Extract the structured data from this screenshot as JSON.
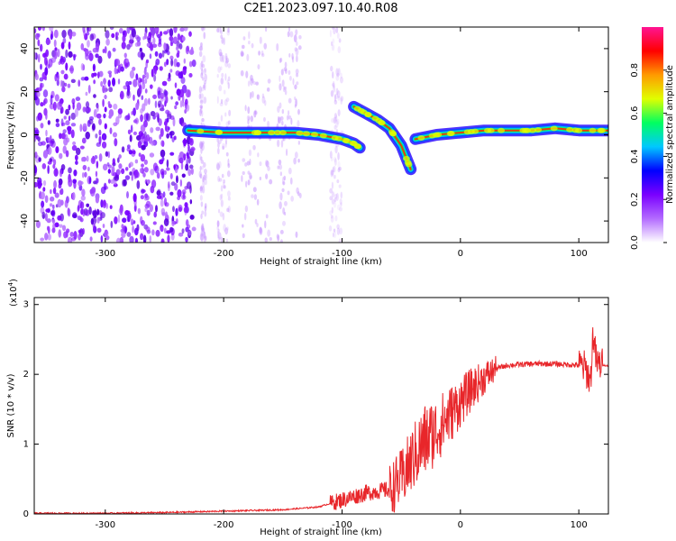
{
  "title": "C2E1.2023.097.10.40.R08",
  "chart_data": [
    {
      "type": "heatmap",
      "xlabel": "Height of straight line (km)",
      "ylabel": "Frequency (Hz)",
      "xlim": [
        -360,
        125
      ],
      "ylim": [
        -50,
        50
      ],
      "x_ticks": [
        -300,
        -200,
        -100,
        0,
        100
      ],
      "y_ticks": [
        -40,
        -20,
        0,
        20,
        40
      ],
      "colorbar": {
        "label": "Normalized spectral amplitude",
        "range": [
          0,
          1
        ],
        "ticks": [
          "0.0",
          "0.2",
          "0.4",
          "0.6",
          "0.8"
        ],
        "colors": [
          "#ffffff",
          "#b36bff",
          "#7a00ff",
          "#0000ff",
          "#00c8ff",
          "#00ff60",
          "#e0ff00",
          "#ff9a00",
          "#ff0000",
          "#ff1493"
        ]
      },
      "ridge": {
        "description_free": true,
        "segments": [
          {
            "x": [
              -230,
              -200,
              -170,
              -140,
              -120,
              -100,
              -90,
              -85
            ],
            "y": [
              2,
              1,
              1,
              1,
              0,
              -2,
              -4,
              -6
            ]
          },
          {
            "x": [
              -90,
              -80,
              -70,
              -60,
              -50,
              -42
            ],
            "y": [
              13,
              10,
              7,
              3,
              -5,
              -16
            ]
          },
          {
            "x": [
              -38,
              -20,
              0,
              20,
              40,
              60,
              80,
              100,
              125
            ],
            "y": [
              -2,
              0,
              1,
              2,
              2,
              2,
              3,
              2,
              2
            ]
          }
        ]
      },
      "noise_region_x": [
        -360,
        -225
      ]
    },
    {
      "type": "line",
      "xlabel": "Height of straight line (km)",
      "ylabel": "SNR (10 * v/v)",
      "y_multiplier": "(x10^4)",
      "xlim": [
        -360,
        125
      ],
      "ylim": [
        0,
        3.1
      ],
      "x_ticks": [
        -300,
        -200,
        -100,
        0,
        100
      ],
      "y_ticks": [
        0,
        1,
        2,
        3
      ],
      "color": "#e8262a",
      "x": [
        -360,
        -300,
        -250,
        -200,
        -150,
        -120,
        -100,
        -80,
        -60,
        -50,
        -40,
        -30,
        -20,
        -10,
        0,
        10,
        20,
        30,
        40,
        60,
        80,
        100,
        105,
        110,
        112,
        115,
        125
      ],
      "y": [
        0.01,
        0.01,
        0.02,
        0.04,
        0.06,
        0.1,
        0.2,
        0.3,
        0.35,
        0.5,
        0.8,
        1.05,
        1.2,
        1.4,
        1.6,
        1.8,
        1.95,
        2.08,
        2.13,
        2.15,
        2.15,
        2.13,
        2.1,
        1.9,
        2.6,
        2.15,
        2.12
      ]
    }
  ]
}
